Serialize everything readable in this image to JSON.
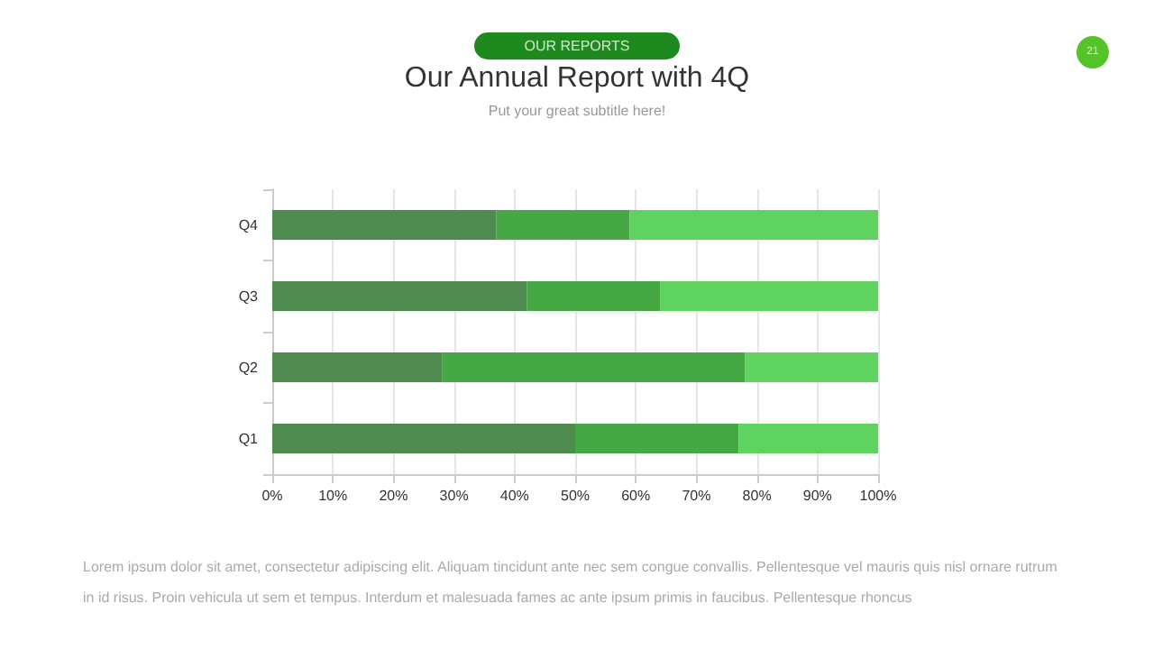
{
  "chart_data": {
    "type": "bar",
    "orientation": "horizontal",
    "stacked": true,
    "title": "Our Annual Report with 4Q",
    "subtitle": "Put your great subtitle here!",
    "annotations": [
      "OUR REPORTS",
      "21",
      "Lorem ipsum dolor sit amet, consectetur adipiscing elit. Aliquam tincidunt ante nec sem congue convallis. Pellentesque vel mauris quis nisl ornare rutrum in id risus. Proin vehicula ut sem et tempus. Interdum et malesuada fames ac ante ipsum primis in faucibus. Pellentesque rhoncus"
    ],
    "categories": [
      "Q4",
      "Q3",
      "Q2",
      "Q1"
    ],
    "series": [
      {
        "color": "#4f8a4f",
        "values": [
          37,
          42,
          28,
          50
        ]
      },
      {
        "color": "#45a845",
        "values": [
          22,
          22,
          50,
          27
        ]
      },
      {
        "color": "#5fd35f",
        "values": [
          41,
          36,
          22,
          23
        ]
      }
    ],
    "xlim": [
      0,
      100
    ],
    "xticks": [
      {
        "value": 0,
        "label": "0%"
      },
      {
        "value": 10,
        "label": "10%"
      },
      {
        "value": 20,
        "label": "20%"
      },
      {
        "value": 30,
        "label": "30%"
      },
      {
        "value": 40,
        "label": "40%"
      },
      {
        "value": 50,
        "label": "50%"
      },
      {
        "value": 60,
        "label": "60%"
      },
      {
        "value": 70,
        "label": "70%"
      },
      {
        "value": 80,
        "label": "80%"
      },
      {
        "value": 90,
        "label": "90%"
      },
      {
        "value": 100,
        "label": "100%"
      }
    ],
    "grid": "x"
  }
}
